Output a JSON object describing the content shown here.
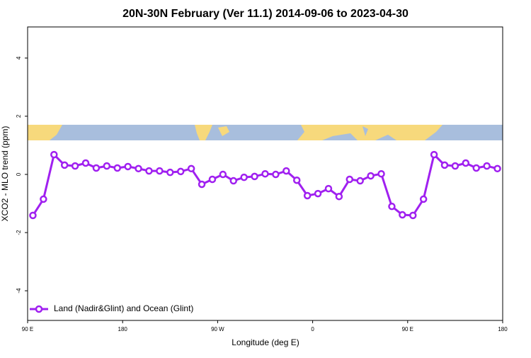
{
  "chart_data": {
    "type": "line",
    "title": "20N-30N February (Ver 11.1)   2014-09-06 to 2023-04-30",
    "x_label": "Longitude (deg E)",
    "y_label": "XCO2 - MLO trend (ppm)",
    "x": [
      95,
      105,
      115,
      125,
      135,
      145,
      155,
      165,
      175,
      185,
      195,
      205,
      215,
      225,
      235,
      245,
      255,
      265,
      275,
      285,
      295,
      305,
      315,
      325,
      335,
      345,
      355,
      365,
      375,
      385,
      395,
      405,
      415,
      425,
      435,
      445,
      455,
      465,
      475,
      485,
      495,
      505,
      515,
      525,
      535
    ],
    "series": [
      {
        "name": "Land (Nadir&Glint) and Ocean (Glint)",
        "color": "#a020f0",
        "values": [
          -1.41,
          -0.85,
          0.68,
          0.32,
          0.29,
          0.39,
          0.22,
          0.29,
          0.22,
          0.27,
          0.2,
          0.12,
          0.12,
          0.07,
          0.1,
          0.2,
          -0.34,
          -0.17,
          0.0,
          -0.22,
          -0.1,
          -0.07,
          0.02,
          0.0,
          0.12,
          -0.2,
          -0.73,
          -0.66,
          -0.49,
          -0.76,
          -0.17,
          -0.22,
          -0.05,
          0.02,
          -1.1,
          -1.39,
          -1.41,
          -0.85,
          0.68,
          0.32,
          0.29,
          0.39,
          0.22,
          0.29,
          0.2
        ]
      }
    ],
    "xlim": [
      90,
      540
    ],
    "xticks": [
      {
        "value": 90,
        "label": "90 E"
      },
      180,
      {
        "value": 270,
        "label": "90 W"
      },
      {
        "value": 360,
        "label": "0"
      },
      {
        "value": 450,
        "label": "90 E"
      },
      {
        "value": 540,
        "label": "180"
      }
    ],
    "ylim": [
      -5.02,
      5.07
    ],
    "yticks": [
      -4,
      -2,
      0,
      2,
      4
    ],
    "legend": "bottom-left"
  }
}
